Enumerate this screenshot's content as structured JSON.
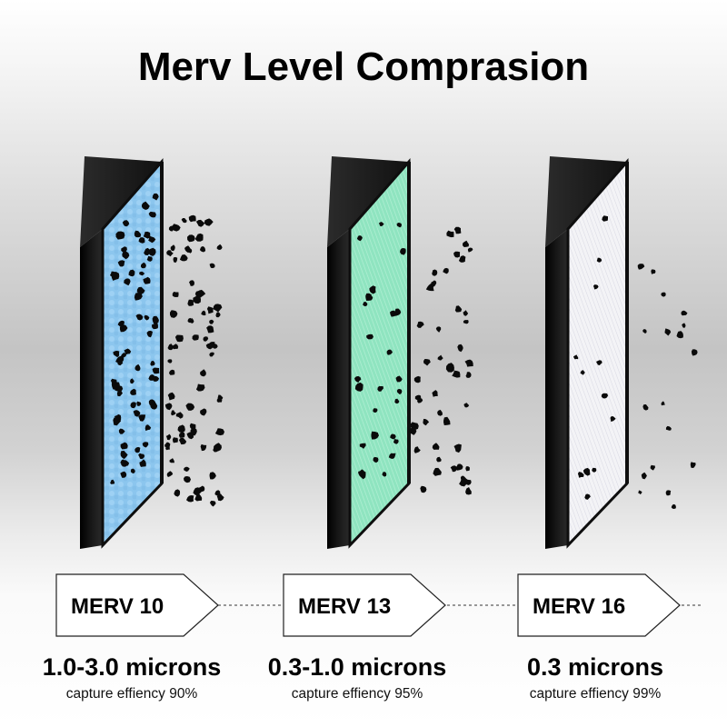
{
  "title": "Merv Level Comprasion",
  "filters": [
    {
      "label": "MERV 10",
      "range": "1.0-3.0 microns",
      "efficiency": "capture effiency 90%",
      "media_color": "#8fc8f0"
    },
    {
      "label": "MERV 13",
      "range": "0.3-1.0 microns",
      "efficiency": "capture effiency 95%",
      "media_color": "#8fe6c2"
    },
    {
      "label": "MERV 16",
      "range": "0.3 microns",
      "efficiency": "capture effiency 99%",
      "media_color": "#f2f2f4"
    }
  ],
  "colors": {
    "frame": "#0e0e0e",
    "particle": "#0a0a0a",
    "tag_fill": "#ffffff",
    "tag_stroke": "#222222"
  }
}
